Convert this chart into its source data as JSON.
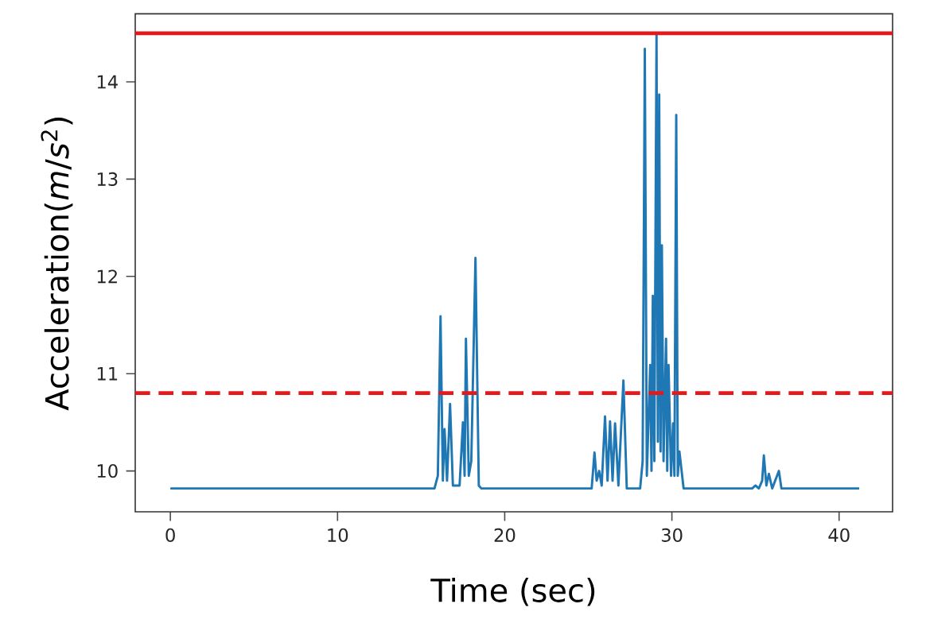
{
  "chart_data": {
    "type": "line",
    "xlabel": "Time (sec)",
    "ylabel": "Acceleration(*m*/*s*$^{2}$)",
    "xlim": [
      -2.1,
      43.2
    ],
    "ylim": [
      9.58,
      14.7
    ],
    "xticks": [
      0,
      10,
      20,
      30,
      40
    ],
    "yticks": [
      10,
      11,
      12,
      13,
      14
    ],
    "grid": false,
    "series": [
      {
        "color": "#1f77b4",
        "x": [
          0,
          15.8,
          16.0,
          16.16,
          16.3,
          16.4,
          16.55,
          16.73,
          16.9,
          17.3,
          17.5,
          17.6,
          17.68,
          17.85,
          18.0,
          18.25,
          18.45,
          18.6,
          25.2,
          25.37,
          25.5,
          25.65,
          25.8,
          26.0,
          26.15,
          26.3,
          26.45,
          26.6,
          26.8,
          27.1,
          27.3,
          28.1,
          28.25,
          28.38,
          28.5,
          28.7,
          28.78,
          28.86,
          28.95,
          29.08,
          29.16,
          29.24,
          29.32,
          29.4,
          29.5,
          29.65,
          29.72,
          29.8,
          29.95,
          30.07,
          30.15,
          30.26,
          30.35,
          30.45,
          30.7,
          34.8,
          35.0,
          35.2,
          35.4,
          35.5,
          35.65,
          35.8,
          36.0,
          36.4,
          36.55,
          41.2
        ],
        "values": [
          9.82,
          9.82,
          9.95,
          11.59,
          9.9,
          10.43,
          9.9,
          10.69,
          9.85,
          9.85,
          10.5,
          9.95,
          11.36,
          9.95,
          10.1,
          12.19,
          9.85,
          9.82,
          9.82,
          10.19,
          9.9,
          10.0,
          9.85,
          10.56,
          9.9,
          10.51,
          9.9,
          10.49,
          9.85,
          10.93,
          9.82,
          9.82,
          10.1,
          14.34,
          9.95,
          11.09,
          10.0,
          11.8,
          10.1,
          14.48,
          10.3,
          13.87,
          10.2,
          12.32,
          10.1,
          11.36,
          10.0,
          11.09,
          9.95,
          10.49,
          9.95,
          13.66,
          9.95,
          10.2,
          9.82,
          9.82,
          9.85,
          9.82,
          9.9,
          10.16,
          9.85,
          9.97,
          9.82,
          10.0,
          9.82,
          9.82
        ]
      }
    ],
    "ref_lines": [
      {
        "axis": "y",
        "value": 14.5,
        "color": "#e31a1c",
        "line_style": "solid"
      },
      {
        "axis": "y",
        "value": 10.8,
        "color": "#e31a1c",
        "line_style": "dashed"
      }
    ]
  }
}
